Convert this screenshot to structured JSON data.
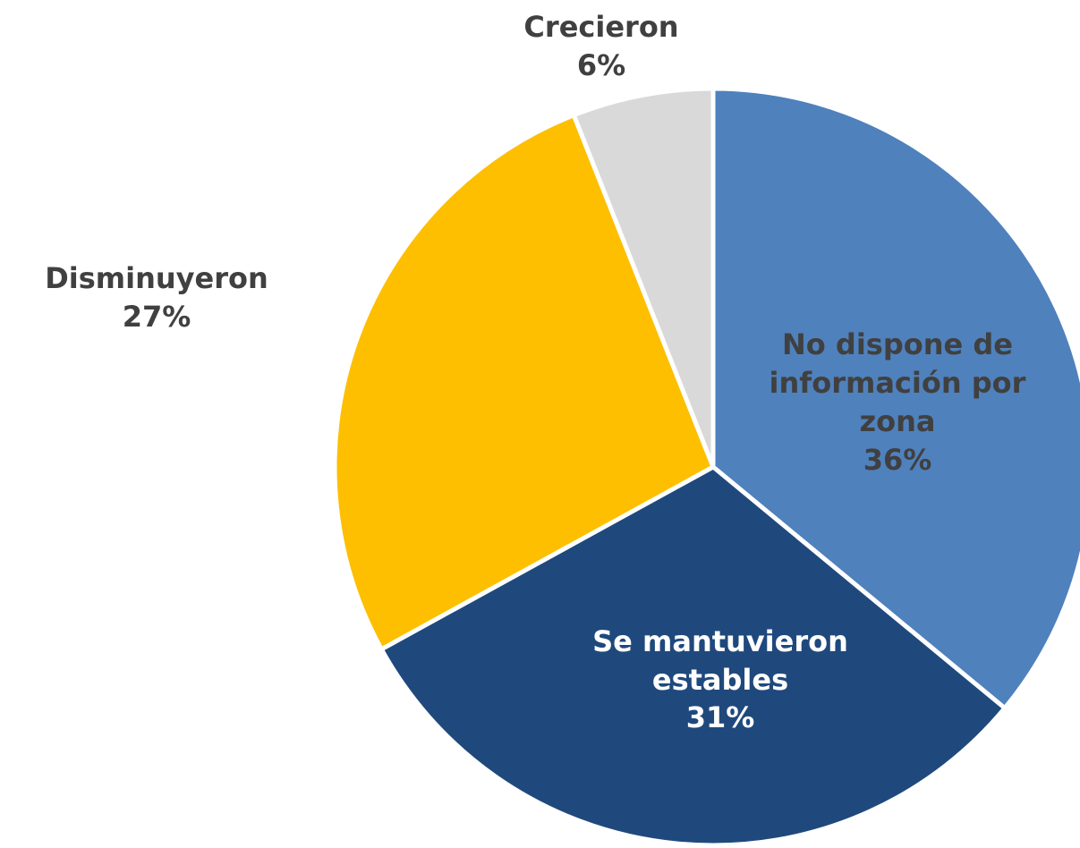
{
  "chart_data": {
    "type": "pie",
    "categories": [
      "No dispone de información por zona",
      "Se mantuvieron estables",
      "Disminuyeron",
      "Crecieron"
    ],
    "values": [
      36,
      31,
      27,
      6
    ],
    "value_labels": [
      "36%",
      "31%",
      "27%",
      "6%"
    ],
    "colors": [
      "#4f81bd",
      "#1f497d",
      "#fdbf00",
      "#d9d9d9"
    ]
  }
}
